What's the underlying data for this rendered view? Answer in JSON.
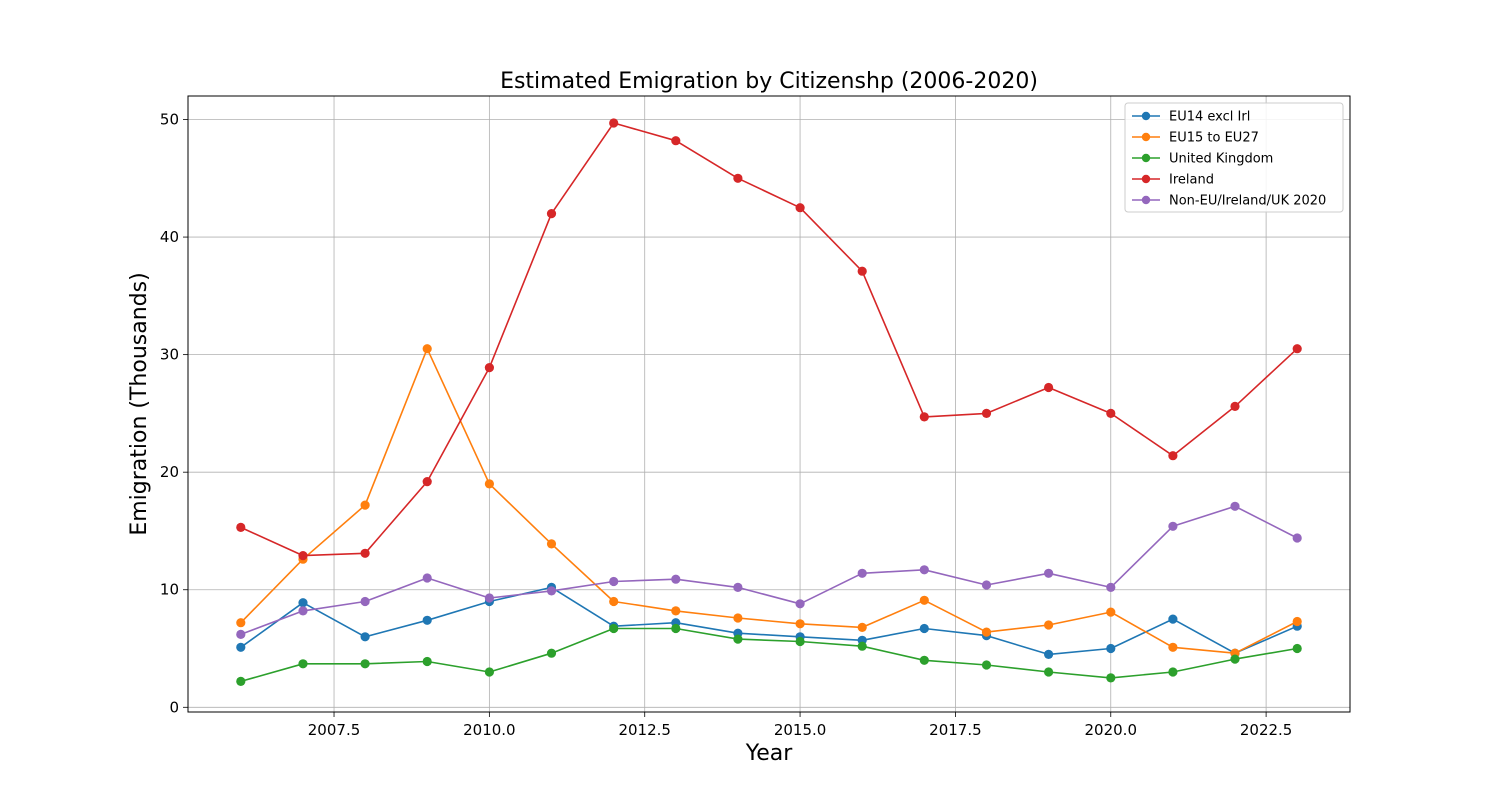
{
  "chart_data": {
    "type": "line",
    "title": "Estimated Emigration by Citizenshp (2006-2020)",
    "xlabel": "Year",
    "ylabel": "Emigration (Thousands)",
    "xlim": [
      2005.15,
      2023.85
    ],
    "ylim": [
      -0.4,
      52.0
    ],
    "xticks": [
      2007.5,
      2010.0,
      2012.5,
      2015.0,
      2017.5,
      2020.0,
      2022.5
    ],
    "xtick_labels": [
      "2007.5",
      "2010.0",
      "2012.5",
      "2015.0",
      "2017.5",
      "2020.0",
      "2022.5"
    ],
    "yticks": [
      0,
      10,
      20,
      30,
      40,
      50
    ],
    "ytick_labels": [
      "0",
      "10",
      "20",
      "30",
      "40",
      "50"
    ],
    "grid": true,
    "legend_position": "top-right",
    "x": [
      2006,
      2007,
      2008,
      2009,
      2010,
      2011,
      2012,
      2013,
      2014,
      2015,
      2016,
      2017,
      2018,
      2019,
      2020,
      2021,
      2022,
      2023
    ],
    "series": [
      {
        "name": "EU14 excl Irl",
        "color": "#1f77b4",
        "values": [
          5.1,
          8.9,
          6.0,
          7.4,
          9.0,
          10.2,
          6.9,
          7.2,
          6.3,
          6.0,
          5.7,
          6.7,
          6.1,
          4.5,
          5.0,
          7.5,
          4.6,
          6.9
        ]
      },
      {
        "name": "EU15 to EU27",
        "color": "#ff7f0e",
        "values": [
          7.2,
          12.6,
          17.2,
          30.5,
          19.0,
          13.9,
          9.0,
          8.2,
          7.6,
          7.1,
          6.8,
          9.1,
          6.4,
          7.0,
          8.1,
          5.1,
          4.6,
          7.3
        ]
      },
      {
        "name": "United Kingdom",
        "color": "#2ca02c",
        "values": [
          2.2,
          3.7,
          3.7,
          3.9,
          3.0,
          4.6,
          6.7,
          6.7,
          5.8,
          5.6,
          5.2,
          4.0,
          3.6,
          3.0,
          2.5,
          3.0,
          4.1,
          5.0
        ]
      },
      {
        "name": "Ireland",
        "color": "#d62728",
        "values": [
          15.3,
          12.9,
          13.1,
          19.2,
          28.9,
          42.0,
          49.7,
          48.2,
          45.0,
          42.5,
          37.1,
          24.7,
          25.0,
          27.2,
          25.0,
          21.4,
          25.6,
          30.5
        ]
      },
      {
        "name": "Non-EU/Ireland/UK 2020",
        "color": "#9467bd",
        "values": [
          6.2,
          8.2,
          9.0,
          11.0,
          9.3,
          9.9,
          10.7,
          10.9,
          10.2,
          8.8,
          11.4,
          11.7,
          10.4,
          11.4,
          10.2,
          15.4,
          17.1,
          14.4
        ]
      }
    ]
  }
}
